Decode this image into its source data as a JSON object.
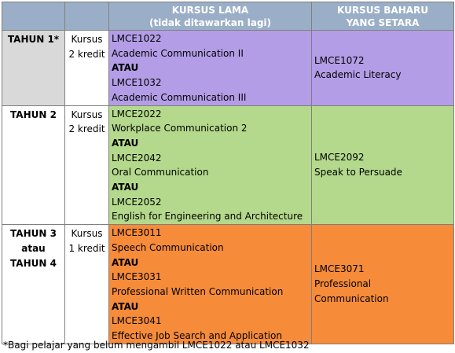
{
  "table": {
    "header": [
      {
        "lines": []
      },
      {
        "lines": []
      },
      {
        "lines": [
          "KURSUS LAMA",
          "(tidak ditawarkan lagi)"
        ]
      },
      {
        "lines": [
          "KURSUS BAHARU",
          "YANG SETARA"
        ]
      }
    ],
    "rows": [
      {
        "year": [
          "TAHUN 1*"
        ],
        "credit": [
          "Kursus",
          "2 kredit"
        ],
        "old": [
          {
            "text": "LMCE1022"
          },
          {
            "text": "Academic Communication II"
          },
          {
            "text": "ATAU",
            "bold": true
          },
          {
            "text": "LMCE1032"
          },
          {
            "text": "Academic Communication III"
          }
        ],
        "new": [
          "LMCE1072",
          "Academic Literacy"
        ],
        "year_color": "#d9d9d9",
        "color": "#b29de6"
      },
      {
        "year": [
          "TAHUN 2"
        ],
        "credit": [
          "Kursus",
          "2 kredit"
        ],
        "old": [
          {
            "text": "LMCE2022"
          },
          {
            "text": "Workplace Communication 2"
          },
          {
            "text": "ATAU",
            "bold": true
          },
          {
            "text": "LMCE2042"
          },
          {
            "text": "Oral Communication"
          },
          {
            "text": "ATAU",
            "bold": true
          },
          {
            "text": "LMCE2052"
          },
          {
            "text": "English for Engineering and Architecture"
          }
        ],
        "new": [
          "LMCE2092",
          "Speak to Persuade"
        ],
        "year_color": "#ffffff",
        "color": "#b4d98c"
      },
      {
        "year": [
          "TAHUN 3",
          "atau",
          "TAHUN 4"
        ],
        "credit": [
          "Kursus",
          "1 kredit"
        ],
        "old": [
          {
            "text": "LMCE3011"
          },
          {
            "text": "Speech Communication"
          },
          {
            "text": "ATAU",
            "bold": true
          },
          {
            "text": "LMCE3031"
          },
          {
            "text": "Professional Written Communication"
          },
          {
            "text": "ATAU",
            "bold": true
          },
          {
            "text": "LMCE3041"
          },
          {
            "text": "Effective Job Search and Application"
          }
        ],
        "new": [
          "LMCE3071",
          "Professional",
          "Communication"
        ],
        "year_color": "#ffffff",
        "color": "#f68b3a"
      }
    ],
    "header_color": "#9aafc7"
  },
  "footnote": "*Bagi pelajar yang belum mengambil LMCE1022 atau LMCE1032"
}
